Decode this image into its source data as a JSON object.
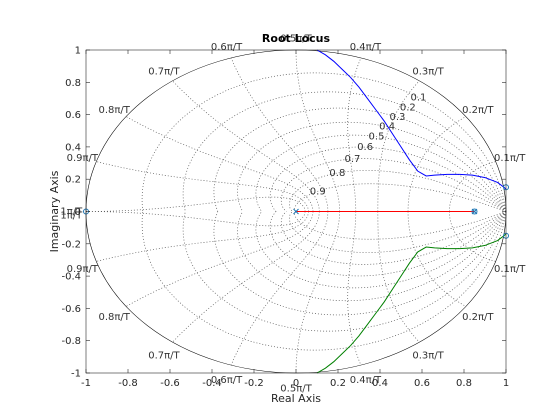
{
  "chart_data": {
    "type": "line",
    "title": "Root Locus",
    "xlabel": "Real Axis",
    "ylabel": "Imaginary Axis",
    "xlim": [
      -1,
      1
    ],
    "ylim": [
      -1,
      1
    ],
    "xticks": [
      -1,
      -0.8,
      -0.6,
      -0.4,
      -0.2,
      0,
      0.2,
      0.4,
      0.6,
      0.8,
      1
    ],
    "yticks": [
      -1,
      -0.8,
      -0.6,
      -0.4,
      -0.2,
      0,
      0.2,
      0.4,
      0.6,
      0.8,
      1
    ],
    "xtick_labels": [
      "-1",
      "-0.8",
      "-0.6",
      "-0.4",
      "-0.2",
      "0",
      "0.2",
      "0.4",
      "0.6",
      "0.8",
      "1"
    ],
    "ytick_labels": [
      "-1",
      "-0.8",
      "-0.6",
      "-0.4",
      "-0.2",
      "0",
      "0.2",
      "0.4",
      "0.6",
      "0.8",
      "1"
    ],
    "grid": "z-plane damping and natural-frequency grid",
    "damping_values": [
      0.1,
      0.2,
      0.3,
      0.4,
      0.5,
      0.6,
      0.7,
      0.8,
      0.9
    ],
    "damping_labels": [
      "0.1",
      "0.2",
      "0.3",
      "0.4",
      "0.5",
      "0.6",
      "0.7",
      "0.8",
      "0.9"
    ],
    "frequency_values": [
      0.1,
      0.2,
      0.3,
      0.4,
      0.5,
      0.6,
      0.7,
      0.8,
      0.9,
      1.0
    ],
    "frequency_labels": [
      "0.1π/T",
      "0.2π/T",
      "0.3π/T",
      "0.4π/T",
      "0.5π/T",
      "0.6π/T",
      "0.7π/T",
      "0.8π/T",
      "0.9π/T",
      "1π/T"
    ],
    "series": [
      {
        "color": "#0000ff",
        "x": [
          1.0,
          0.96,
          0.9,
          0.84,
          0.78,
          0.72,
          0.66,
          0.62,
          0.58,
          0.54,
          0.5,
          0.46,
          0.42,
          0.38,
          0.34,
          0.3,
          0.26,
          0.22,
          0.18,
          0.14,
          0.1
        ],
        "y": [
          0.14,
          0.18,
          0.21,
          0.225,
          0.23,
          0.23,
          0.225,
          0.22,
          0.25,
          0.32,
          0.4,
          0.48,
          0.56,
          0.63,
          0.7,
          0.77,
          0.83,
          0.88,
          0.93,
          0.97,
          1.0
        ]
      },
      {
        "color": "#008000",
        "x": [
          1.0,
          0.96,
          0.9,
          0.84,
          0.78,
          0.72,
          0.66,
          0.62,
          0.58,
          0.54,
          0.5,
          0.46,
          0.42,
          0.38,
          0.34,
          0.3,
          0.26,
          0.22,
          0.18,
          0.14,
          0.1
        ],
        "y": [
          -0.14,
          -0.18,
          -0.21,
          -0.225,
          -0.23,
          -0.23,
          -0.225,
          -0.22,
          -0.25,
          -0.32,
          -0.4,
          -0.48,
          -0.56,
          -0.63,
          -0.7,
          -0.77,
          -0.83,
          -0.88,
          -0.93,
          -0.97,
          -1.0
        ]
      },
      {
        "color": "#ff0000",
        "x": [
          0.0,
          0.85
        ],
        "y": [
          0.0,
          0.0
        ]
      }
    ],
    "poles": [
      [
        0.0,
        0.0
      ],
      [
        0.85,
        0.0
      ]
    ],
    "zeros": [
      [
        -1.0,
        0.0
      ],
      [
        0.85,
        0.0
      ],
      [
        1.0,
        0.15
      ],
      [
        1.0,
        -0.15
      ]
    ],
    "marker_color": "#1f77b4"
  }
}
